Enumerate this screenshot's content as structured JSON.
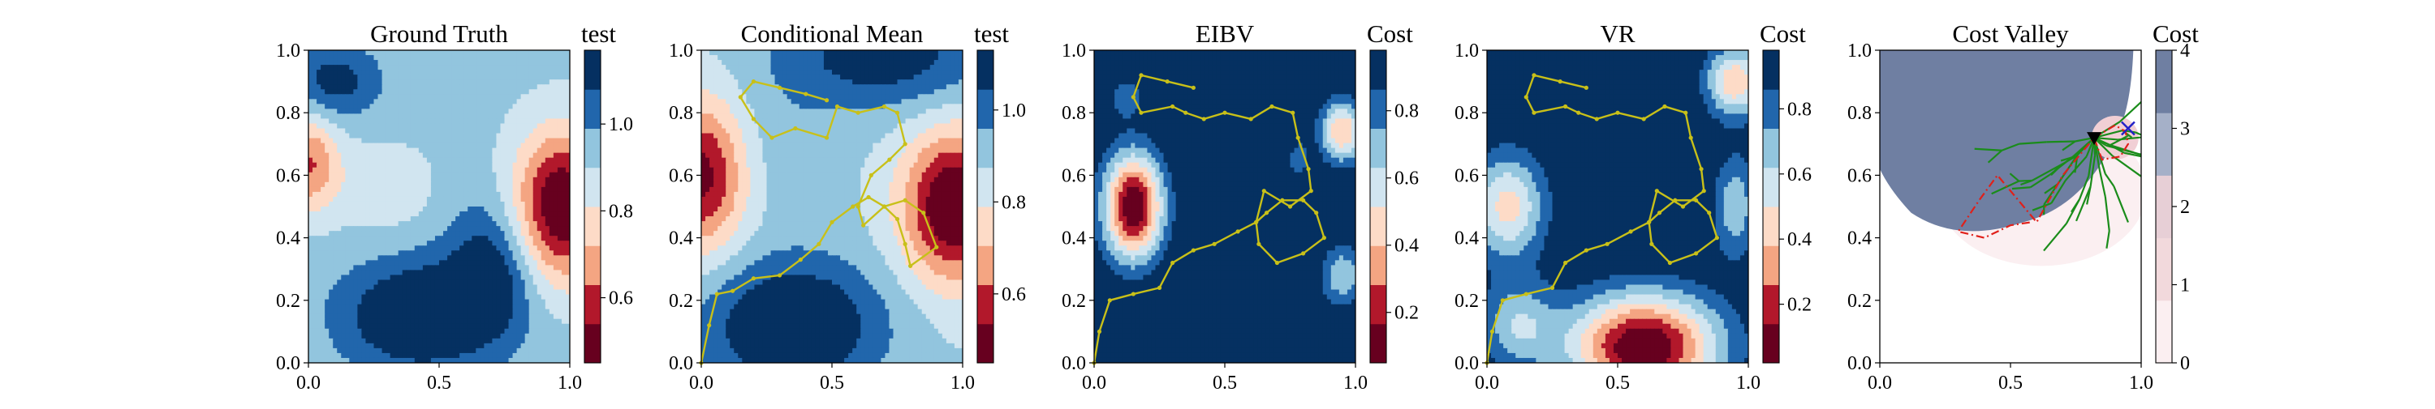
{
  "chart_data": [
    {
      "type": "heatmap",
      "title": "Ground Truth",
      "colorbar_label": "test",
      "colormap": "RdBu",
      "xlim": [
        0.0,
        1.0
      ],
      "ylim": [
        0.0,
        1.0
      ],
      "xticks": [
        "0.0",
        "0.5",
        "1.0"
      ],
      "yticks": [
        "0.0",
        "0.2",
        "0.4",
        "0.6",
        "0.8",
        "1.0"
      ],
      "colorbar_range": [
        0.45,
        1.17
      ],
      "colorbar_levels": 8,
      "colorbar_ticks": [
        "0.6",
        "0.8",
        "1.0"
      ],
      "colorbar_tick_values": [
        0.6,
        0.8,
        1.0
      ],
      "field_base": 0.93,
      "field_features": [
        {
          "x": 0.97,
          "y": 0.5,
          "amp": -0.5,
          "sx": 0.13,
          "sy": 0.17
        },
        {
          "x": 0.0,
          "y": 0.64,
          "amp": -0.3,
          "sx": 0.08,
          "sy": 0.11
        },
        {
          "x": 0.28,
          "y": 0.56,
          "amp": -0.1,
          "sx": 0.14,
          "sy": 0.1
        },
        {
          "x": 0.42,
          "y": 0.15,
          "amp": 0.3,
          "sx": 0.2,
          "sy": 0.12
        },
        {
          "x": 0.7,
          "y": 0.3,
          "amp": 0.22,
          "sx": 0.12,
          "sy": 0.15
        },
        {
          "x": 0.1,
          "y": 0.9,
          "amp": 0.2,
          "sx": 0.12,
          "sy": 0.08
        }
      ],
      "path": []
    },
    {
      "type": "heatmap",
      "title": "Conditional Mean",
      "colorbar_label": "test",
      "colormap": "RdBu",
      "xlim": [
        0.0,
        1.0
      ],
      "ylim": [
        0.0,
        1.0
      ],
      "xticks": [
        "0.0",
        "0.5",
        "1.0"
      ],
      "yticks": [
        "0.0",
        "0.2",
        "0.4",
        "0.6",
        "0.8",
        "1.0"
      ],
      "colorbar_range": [
        0.45,
        1.13
      ],
      "colorbar_levels": 8,
      "colorbar_ticks": [
        "0.6",
        "0.8",
        "1.0"
      ],
      "colorbar_tick_values": [
        0.6,
        0.8,
        1.0
      ],
      "field_base": 0.88,
      "field_features": [
        {
          "x": 0.97,
          "y": 0.5,
          "amp": -0.46,
          "sx": 0.14,
          "sy": 0.17
        },
        {
          "x": 0.0,
          "y": 0.6,
          "amp": -0.38,
          "sx": 0.12,
          "sy": 0.17
        },
        {
          "x": 0.35,
          "y": 0.12,
          "amp": 0.3,
          "sx": 0.24,
          "sy": 0.15
        },
        {
          "x": 0.7,
          "y": 0.98,
          "amp": 0.22,
          "sx": 0.3,
          "sy": 0.12
        },
        {
          "x": 0.32,
          "y": 0.68,
          "amp": 0.05,
          "sx": 0.15,
          "sy": 0.15
        }
      ],
      "path": [
        [
          0.0,
          0.0
        ],
        [
          0.03,
          0.12
        ],
        [
          0.06,
          0.22
        ],
        [
          0.12,
          0.23
        ],
        [
          0.2,
          0.27
        ],
        [
          0.3,
          0.28
        ],
        [
          0.38,
          0.33
        ],
        [
          0.45,
          0.38
        ],
        [
          0.5,
          0.45
        ],
        [
          0.58,
          0.5
        ],
        [
          0.64,
          0.53
        ],
        [
          0.7,
          0.5
        ],
        [
          0.75,
          0.46
        ],
        [
          0.78,
          0.38
        ],
        [
          0.8,
          0.31
        ],
        [
          0.9,
          0.37
        ],
        [
          0.85,
          0.48
        ],
        [
          0.78,
          0.52
        ],
        [
          0.7,
          0.5
        ],
        [
          0.62,
          0.44
        ],
        [
          0.6,
          0.5
        ],
        [
          0.65,
          0.6
        ],
        [
          0.72,
          0.65
        ],
        [
          0.78,
          0.7
        ],
        [
          0.75,
          0.8
        ],
        [
          0.7,
          0.82
        ],
        [
          0.6,
          0.8
        ],
        [
          0.52,
          0.82
        ],
        [
          0.48,
          0.72
        ],
        [
          0.36,
          0.75
        ],
        [
          0.27,
          0.72
        ],
        [
          0.2,
          0.78
        ],
        [
          0.15,
          0.85
        ],
        [
          0.2,
          0.9
        ],
        [
          0.3,
          0.88
        ],
        [
          0.4,
          0.86
        ],
        [
          0.48,
          0.84
        ]
      ]
    },
    {
      "type": "heatmap",
      "title": "EIBV",
      "colorbar_label": "Cost",
      "colormap": "RdBu",
      "xlim": [
        0.0,
        1.0
      ],
      "ylim": [
        0.0,
        1.0
      ],
      "xticks": [
        "0.0",
        "0.5",
        "1.0"
      ],
      "yticks": [
        "0.0",
        "0.2",
        "0.4",
        "0.6",
        "0.8",
        "1.0"
      ],
      "colorbar_range": [
        0.05,
        0.98
      ],
      "colorbar_levels": 8,
      "colorbar_ticks": [
        "0.2",
        "0.4",
        "0.6",
        "0.8"
      ],
      "colorbar_tick_values": [
        0.2,
        0.4,
        0.6,
        0.8
      ],
      "field_base": 1.0,
      "field_features": [
        {
          "x": 0.15,
          "y": 0.5,
          "amp": -0.95,
          "sx": 0.08,
          "sy": 0.12
        },
        {
          "x": 0.95,
          "y": 0.74,
          "amp": -0.6,
          "sx": 0.06,
          "sy": 0.07
        },
        {
          "x": 0.95,
          "y": 0.28,
          "amp": -0.35,
          "sx": 0.06,
          "sy": 0.07
        },
        {
          "x": 0.12,
          "y": 0.85,
          "amp": -0.2,
          "sx": 0.05,
          "sy": 0.05
        },
        {
          "x": 0.78,
          "y": 0.65,
          "amp": -0.2,
          "sx": 0.03,
          "sy": 0.05
        }
      ],
      "path": [
        [
          0.0,
          0.0
        ],
        [
          0.02,
          0.1
        ],
        [
          0.06,
          0.2
        ],
        [
          0.15,
          0.22
        ],
        [
          0.25,
          0.24
        ],
        [
          0.3,
          0.32
        ],
        [
          0.38,
          0.36
        ],
        [
          0.46,
          0.38
        ],
        [
          0.55,
          0.42
        ],
        [
          0.62,
          0.45
        ],
        [
          0.63,
          0.38
        ],
        [
          0.7,
          0.32
        ],
        [
          0.8,
          0.35
        ],
        [
          0.88,
          0.4
        ],
        [
          0.85,
          0.48
        ],
        [
          0.8,
          0.52
        ],
        [
          0.72,
          0.52
        ],
        [
          0.66,
          0.48
        ],
        [
          0.62,
          0.45
        ],
        [
          0.65,
          0.55
        ],
        [
          0.75,
          0.5
        ],
        [
          0.83,
          0.55
        ],
        [
          0.82,
          0.62
        ],
        [
          0.78,
          0.72
        ],
        [
          0.76,
          0.8
        ],
        [
          0.68,
          0.82
        ],
        [
          0.6,
          0.78
        ],
        [
          0.5,
          0.8
        ],
        [
          0.42,
          0.78
        ],
        [
          0.35,
          0.8
        ],
        [
          0.3,
          0.82
        ],
        [
          0.18,
          0.8
        ],
        [
          0.15,
          0.85
        ],
        [
          0.18,
          0.92
        ],
        [
          0.28,
          0.9
        ],
        [
          0.38,
          0.88
        ]
      ]
    },
    {
      "type": "heatmap",
      "title": "VR",
      "colorbar_label": "Cost",
      "colormap": "RdBu",
      "xlim": [
        0.0,
        1.0
      ],
      "ylim": [
        0.0,
        1.0
      ],
      "xticks": [
        "0.0",
        "0.5",
        "1.0"
      ],
      "yticks": [
        "0.0",
        "0.2",
        "0.4",
        "0.6",
        "0.8",
        "1.0"
      ],
      "colorbar_range": [
        0.02,
        0.98
      ],
      "colorbar_levels": 8,
      "colorbar_ticks": [
        "0.2",
        "0.4",
        "0.6",
        "0.8"
      ],
      "colorbar_tick_values": [
        0.2,
        0.4,
        0.6,
        0.8
      ],
      "field_base": 1.0,
      "field_features": [
        {
          "x": 0.6,
          "y": 0.05,
          "amp": -1.0,
          "sx": 0.2,
          "sy": 0.12
        },
        {
          "x": 0.08,
          "y": 0.5,
          "amp": -0.55,
          "sx": 0.1,
          "sy": 0.12
        },
        {
          "x": 0.95,
          "y": 0.9,
          "amp": -0.6,
          "sx": 0.08,
          "sy": 0.08
        },
        {
          "x": 0.95,
          "y": 0.5,
          "amp": -0.35,
          "sx": 0.06,
          "sy": 0.12
        },
        {
          "x": 0.12,
          "y": 0.12,
          "amp": -0.35,
          "sx": 0.1,
          "sy": 0.1
        },
        {
          "x": 0.55,
          "y": 0.55,
          "amp": -0.12,
          "sx": 0.08,
          "sy": 0.08
        }
      ],
      "path": [
        [
          0.0,
          0.0
        ],
        [
          0.02,
          0.1
        ],
        [
          0.06,
          0.2
        ],
        [
          0.15,
          0.22
        ],
        [
          0.25,
          0.24
        ],
        [
          0.3,
          0.32
        ],
        [
          0.38,
          0.36
        ],
        [
          0.46,
          0.38
        ],
        [
          0.55,
          0.42
        ],
        [
          0.62,
          0.45
        ],
        [
          0.63,
          0.38
        ],
        [
          0.7,
          0.32
        ],
        [
          0.8,
          0.35
        ],
        [
          0.88,
          0.4
        ],
        [
          0.85,
          0.48
        ],
        [
          0.8,
          0.52
        ],
        [
          0.72,
          0.52
        ],
        [
          0.66,
          0.48
        ],
        [
          0.62,
          0.45
        ],
        [
          0.65,
          0.55
        ],
        [
          0.75,
          0.5
        ],
        [
          0.83,
          0.55
        ],
        [
          0.82,
          0.62
        ],
        [
          0.78,
          0.72
        ],
        [
          0.76,
          0.8
        ],
        [
          0.68,
          0.82
        ],
        [
          0.6,
          0.78
        ],
        [
          0.5,
          0.8
        ],
        [
          0.42,
          0.78
        ],
        [
          0.35,
          0.8
        ],
        [
          0.3,
          0.82
        ],
        [
          0.18,
          0.8
        ],
        [
          0.15,
          0.85
        ],
        [
          0.18,
          0.92
        ],
        [
          0.28,
          0.9
        ],
        [
          0.38,
          0.88
        ]
      ]
    },
    {
      "type": "heatmap",
      "title": "Cost Valley",
      "colorbar_label": "Cost",
      "colormap": "Greys-Pink",
      "xlim": [
        0.0,
        1.0
      ],
      "ylim": [
        0.0,
        1.0
      ],
      "xticks": [
        "0.0",
        "0.5",
        "1.0"
      ],
      "yticks": [
        "0.0",
        "0.2",
        "0.4",
        "0.6",
        "0.8",
        "1.0"
      ],
      "colorbar_range": [
        0,
        4
      ],
      "colorbar_levels": 5,
      "colorbar_ticks": [
        "0",
        "1",
        "2",
        "3",
        "4"
      ],
      "colorbar_tick_values": [
        0,
        1,
        2,
        3,
        4
      ],
      "colors": {
        "high_cost": "#6f7fa2",
        "mid_cost": "#f2d9dc",
        "low_cost": "#fbeff1",
        "tree": "#1a8c1a",
        "planned_path": "#e0201a",
        "current_location": "#000000",
        "target": "#2020c8"
      },
      "current_location": [
        0.82,
        0.72
      ],
      "target": [
        0.95,
        0.75
      ],
      "planned_path": [
        [
          0.82,
          0.72
        ],
        [
          0.9,
          0.76
        ],
        [
          0.94,
          0.74
        ],
        [
          0.95,
          0.7
        ],
        [
          0.92,
          0.66
        ],
        [
          0.85,
          0.65
        ],
        [
          0.82,
          0.72
        ],
        [
          0.7,
          0.6
        ],
        [
          0.6,
          0.45
        ],
        [
          0.55,
          0.5
        ],
        [
          0.45,
          0.6
        ],
        [
          0.38,
          0.52
        ],
        [
          0.3,
          0.42
        ],
        [
          0.4,
          0.4
        ],
        [
          0.5,
          0.44
        ],
        [
          0.58,
          0.45
        ]
      ]
    }
  ]
}
